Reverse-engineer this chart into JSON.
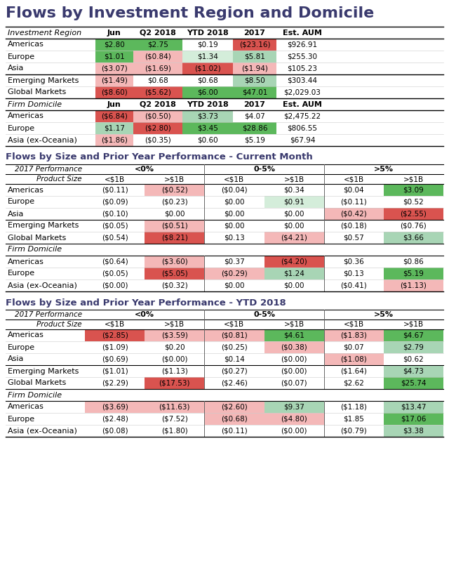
{
  "title": "Flows by Investment Region and Domicile",
  "section1_cols": [
    "Investment Region",
    "Jun",
    "Q2 2018",
    "YTD 2018",
    "2017",
    "Est. AUM"
  ],
  "section1_inv_region_rows": [
    {
      "label": "Americas",
      "values": [
        "$2.80",
        "$2.75",
        "$0.19",
        "($23.16)",
        "$926.91"
      ],
      "colors": [
        "#5cb85c",
        "#5cb85c",
        "",
        "#d9534f",
        ""
      ]
    },
    {
      "label": "Europe",
      "values": [
        "$1.01",
        "($0.84)",
        "$1.34",
        "$5.81",
        "$255.30"
      ],
      "colors": [
        "#5cb85c",
        "#f4b8b8",
        "#d4edda",
        "#a8d5b5",
        ""
      ]
    },
    {
      "label": "Asia",
      "values": [
        "($3.07)",
        "($1.69)",
        "($1.02)",
        "($1.94)",
        "$105.23"
      ],
      "colors": [
        "#f4b8b8",
        "#f4b8b8",
        "#d9534f",
        "#f4b8b8",
        ""
      ]
    }
  ],
  "section1_other_rows": [
    {
      "label": "Emerging Markets",
      "values": [
        "($1.49)",
        "$0.68",
        "$0.68",
        "$8.50",
        "$303.44"
      ],
      "colors": [
        "#f4b8b8",
        "",
        "",
        "#a8d5b5",
        ""
      ]
    },
    {
      "label": "Global Markets",
      "values": [
        "($8.60)",
        "($5.62)",
        "$6.00",
        "$47.01",
        "$2,029.03"
      ],
      "colors": [
        "#d9534f",
        "#d9534f",
        "#5cb85c",
        "#5cb85c",
        ""
      ]
    }
  ],
  "section1_domicile_rows": [
    {
      "label": "Americas",
      "values": [
        "($6.84)",
        "($0.50)",
        "$3.73",
        "$4.07",
        "$2,475.22"
      ],
      "colors": [
        "#d9534f",
        "#f4b8b8",
        "#a8d5b5",
        "",
        ""
      ]
    },
    {
      "label": "Europe",
      "values": [
        "$1.17",
        "($2.80)",
        "$3.45",
        "$28.86",
        "$806.55"
      ],
      "colors": [
        "#a8d5b5",
        "#d9534f",
        "#5cb85c",
        "#5cb85c",
        ""
      ]
    },
    {
      "label": "Asia (ex-Oceania)",
      "values": [
        "($1.86)",
        "($0.35)",
        "$0.60",
        "$5.19",
        "$67.94"
      ],
      "colors": [
        "#f4b8b8",
        "",
        "",
        "",
        ""
      ]
    }
  ],
  "section2_title": "Flows by Size and Prior Year Performance - Current Month",
  "section3_title": "Flows by Size and Prior Year Performance - YTD 2018",
  "perf_cols": [
    "<0%",
    "0-5%",
    ">5%"
  ],
  "size_cols": [
    "<$1B",
    ">$1B",
    "<$1B",
    ">$1B",
    "<$1B",
    ">$1B"
  ],
  "section2_inv_rows": [
    {
      "label": "Americas",
      "values": [
        "($0.11)",
        "($0.52)",
        "($0.04)",
        "$0.34",
        "$0.04",
        "$3.09"
      ],
      "colors": [
        "",
        "#f4b8b8",
        "",
        "",
        "",
        "#5cb85c"
      ]
    },
    {
      "label": "Europe",
      "values": [
        "($0.09)",
        "($0.23)",
        "$0.00",
        "$0.91",
        "($0.11)",
        "$0.52"
      ],
      "colors": [
        "",
        "",
        "",
        "#d4edda",
        "",
        ""
      ]
    },
    {
      "label": "Asia",
      "values": [
        "($0.10)",
        "$0.00",
        "$0.00",
        "$0.00",
        "($0.42)",
        "($2.55)"
      ],
      "colors": [
        "",
        "",
        "",
        "",
        "#f4b8b8",
        "#d9534f"
      ]
    }
  ],
  "section2_other_rows": [
    {
      "label": "Emerging Markets",
      "values": [
        "($0.05)",
        "($0.51)",
        "$0.00",
        "$0.00",
        "($0.18)",
        "($0.76)"
      ],
      "colors": [
        "",
        "#f4b8b8",
        "",
        "",
        "",
        ""
      ]
    },
    {
      "label": "Global Markets",
      "values": [
        "($0.54)",
        "($8.21)",
        "$0.13",
        "($4.21)",
        "$0.57",
        "$3.66"
      ],
      "colors": [
        "",
        "#d9534f",
        "",
        "#f4b8b8",
        "",
        "#a8d5b5"
      ]
    }
  ],
  "section2_domicile_rows": [
    {
      "label": "Americas",
      "values": [
        "($0.64)",
        "($3.60)",
        "$0.37",
        "($4.20)",
        "$0.36",
        "$0.86"
      ],
      "colors": [
        "",
        "#f4b8b8",
        "",
        "#d9534f",
        "",
        ""
      ]
    },
    {
      "label": "Europe",
      "values": [
        "($0.05)",
        "($5.05)",
        "($0.29)",
        "$1.24",
        "$0.13",
        "$5.19"
      ],
      "colors": [
        "",
        "#d9534f",
        "#f4b8b8",
        "#a8d5b5",
        "",
        "#5cb85c"
      ]
    },
    {
      "label": "Asia (ex-Oceania)",
      "values": [
        "($0.00)",
        "($0.32)",
        "$0.00",
        "$0.00",
        "($0.41)",
        "($1.13)"
      ],
      "colors": [
        "",
        "",
        "",
        "",
        "",
        "#f4b8b8"
      ]
    }
  ],
  "section3_inv_rows": [
    {
      "label": "Americas",
      "values": [
        "($2.85)",
        "($3.59)",
        "($0.81)",
        "$4.61",
        "($1.83)",
        "$4.67"
      ],
      "colors": [
        "#d9534f",
        "#f4b8b8",
        "#f4b8b8",
        "#5cb85c",
        "#f4b8b8",
        "#5cb85c"
      ]
    },
    {
      "label": "Europe",
      "values": [
        "($1.09)",
        "$0.20",
        "($0.25)",
        "($0.38)",
        "$0.07",
        "$2.79"
      ],
      "colors": [
        "",
        "",
        "",
        "#f4b8b8",
        "",
        "#a8d5b5"
      ]
    },
    {
      "label": "Asia",
      "values": [
        "($0.69)",
        "($0.00)",
        "$0.14",
        "($0.00)",
        "($1.08)",
        "$0.62"
      ],
      "colors": [
        "",
        "",
        "",
        "",
        "#f4b8b8",
        ""
      ]
    }
  ],
  "section3_other_rows": [
    {
      "label": "Emerging Markets",
      "values": [
        "($1.01)",
        "($1.13)",
        "($0.27)",
        "($0.00)",
        "($1.64)",
        "$4.73"
      ],
      "colors": [
        "",
        "",
        "",
        "",
        "",
        "#a8d5b5"
      ]
    },
    {
      "label": "Global Markets",
      "values": [
        "($2.29)",
        "($17.53)",
        "($2.46)",
        "($0.07)",
        "$2.62",
        "$25.74"
      ],
      "colors": [
        "",
        "#d9534f",
        "",
        "",
        "",
        "#5cb85c"
      ]
    }
  ],
  "section3_domicile_rows": [
    {
      "label": "Americas",
      "values": [
        "($3.69)",
        "($11.63)",
        "($2.60)",
        "$9.37",
        "($1.18)",
        "$13.47"
      ],
      "colors": [
        "#f4b8b8",
        "#f4b8b8",
        "#f4b8b8",
        "#a8d5b5",
        "",
        "#a8d5b5"
      ]
    },
    {
      "label": "Europe",
      "values": [
        "($2.48)",
        "($7.52)",
        "($0.68)",
        "($4.80)",
        "$1.85",
        "$17.06"
      ],
      "colors": [
        "",
        "",
        "#f4b8b8",
        "#f4b8b8",
        "",
        "#5cb85c"
      ]
    },
    {
      "label": "Asia (ex-Oceania)",
      "values": [
        "($0.08)",
        "($1.80)",
        "($0.11)",
        "($0.00)",
        "($0.79)",
        "$3.38"
      ],
      "colors": [
        "",
        "",
        "",
        "",
        "",
        "#a8d5b5"
      ]
    }
  ]
}
